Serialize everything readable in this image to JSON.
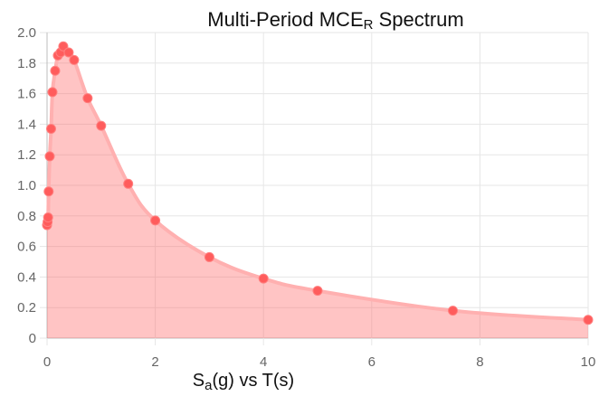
{
  "chart_data": {
    "type": "area",
    "title_main": "Multi-Period MCE",
    "title_sub": "R",
    "title_tail": " Spectrum",
    "xlabel_main": "S",
    "xlabel_sub": "a",
    "xlabel_tail": "(g) vs T(s)",
    "xlim": [
      0,
      10
    ],
    "ylim": [
      0,
      2.0
    ],
    "xticks": [
      0,
      2,
      4,
      6,
      8,
      10
    ],
    "xtick_labels": [
      "0",
      "2",
      "4",
      "6",
      "8",
      "10"
    ],
    "yticks": [
      0,
      0.2,
      0.4,
      0.6,
      0.8,
      1.0,
      1.2,
      1.4,
      1.6,
      1.8,
      2.0
    ],
    "ytick_labels": [
      "0",
      "0.2",
      "0.4",
      "0.6",
      "0.8",
      "1.0",
      "1.2",
      "1.4",
      "1.6",
      "1.8",
      "2.0"
    ],
    "grid": true,
    "series": [
      {
        "points": [
          {
            "x": 0.0,
            "y": 0.74
          },
          {
            "x": 0.01,
            "y": 0.76
          },
          {
            "x": 0.02,
            "y": 0.79
          },
          {
            "x": 0.03,
            "y": 0.96
          },
          {
            "x": 0.05,
            "y": 1.19
          },
          {
            "x": 0.075,
            "y": 1.37
          },
          {
            "x": 0.1,
            "y": 1.61
          },
          {
            "x": 0.15,
            "y": 1.75
          },
          {
            "x": 0.2,
            "y": 1.85
          },
          {
            "x": 0.25,
            "y": 1.87
          },
          {
            "x": 0.3,
            "y": 1.91
          },
          {
            "x": 0.4,
            "y": 1.87
          },
          {
            "x": 0.5,
            "y": 1.82
          },
          {
            "x": 0.75,
            "y": 1.57
          },
          {
            "x": 1.0,
            "y": 1.39
          },
          {
            "x": 1.5,
            "y": 1.01
          },
          {
            "x": 2.0,
            "y": 0.77
          },
          {
            "x": 3.0,
            "y": 0.53
          },
          {
            "x": 4.0,
            "y": 0.39
          },
          {
            "x": 5.0,
            "y": 0.31
          },
          {
            "x": 7.5,
            "y": 0.18
          },
          {
            "x": 10.0,
            "y": 0.12
          }
        ]
      }
    ]
  }
}
